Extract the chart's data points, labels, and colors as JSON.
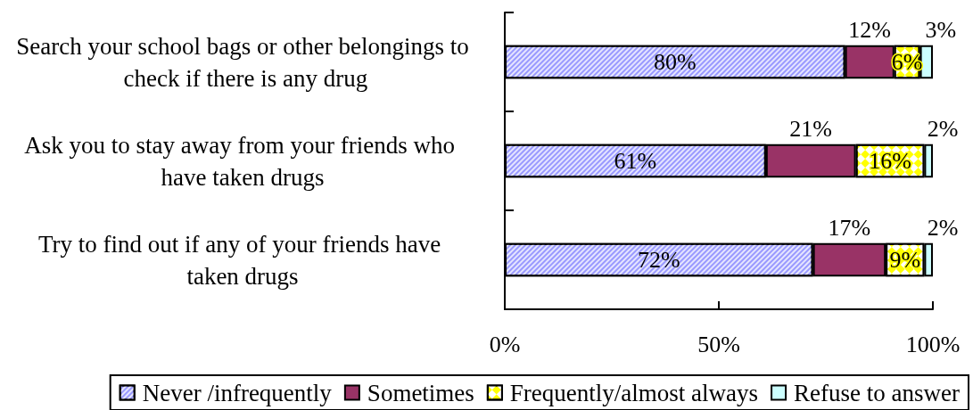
{
  "chart_data": {
    "type": "bar",
    "orientation": "horizontal",
    "stacked": true,
    "categories": [
      "Search your school bags or other belongings to check if there is any drug",
      "Ask you to stay away from your friends who have taken drugs",
      "Try to find out if any of your friends have taken drugs"
    ],
    "series": [
      {
        "name": "Never /infrequently",
        "color": "#9999ff",
        "values": [
          79.5,
          61,
          72
        ],
        "value_labels": [
          "80%",
          "61%",
          "72%"
        ]
      },
      {
        "name": "Sometimes",
        "color": "#993366",
        "values": [
          11.5,
          21,
          17
        ],
        "value_labels": [
          "12%",
          "21%",
          "17%"
        ]
      },
      {
        "name": "Frequently/almost always",
        "color": "#ffff00",
        "values": [
          6,
          16,
          9
        ],
        "value_labels": [
          "6%",
          "16%",
          "9%"
        ]
      },
      {
        "name": "Refuse to answer",
        "color": "#ccffff",
        "values": [
          3,
          2,
          2
        ],
        "value_labels": [
          "3%",
          "2%",
          "2%"
        ]
      }
    ],
    "xlim": [
      0,
      100
    ],
    "xticks": [
      {
        "value": 0,
        "label": "0%"
      },
      {
        "value": 50,
        "label": "50%"
      },
      {
        "value": 100,
        "label": "100%"
      }
    ],
    "legend": "bottom"
  }
}
